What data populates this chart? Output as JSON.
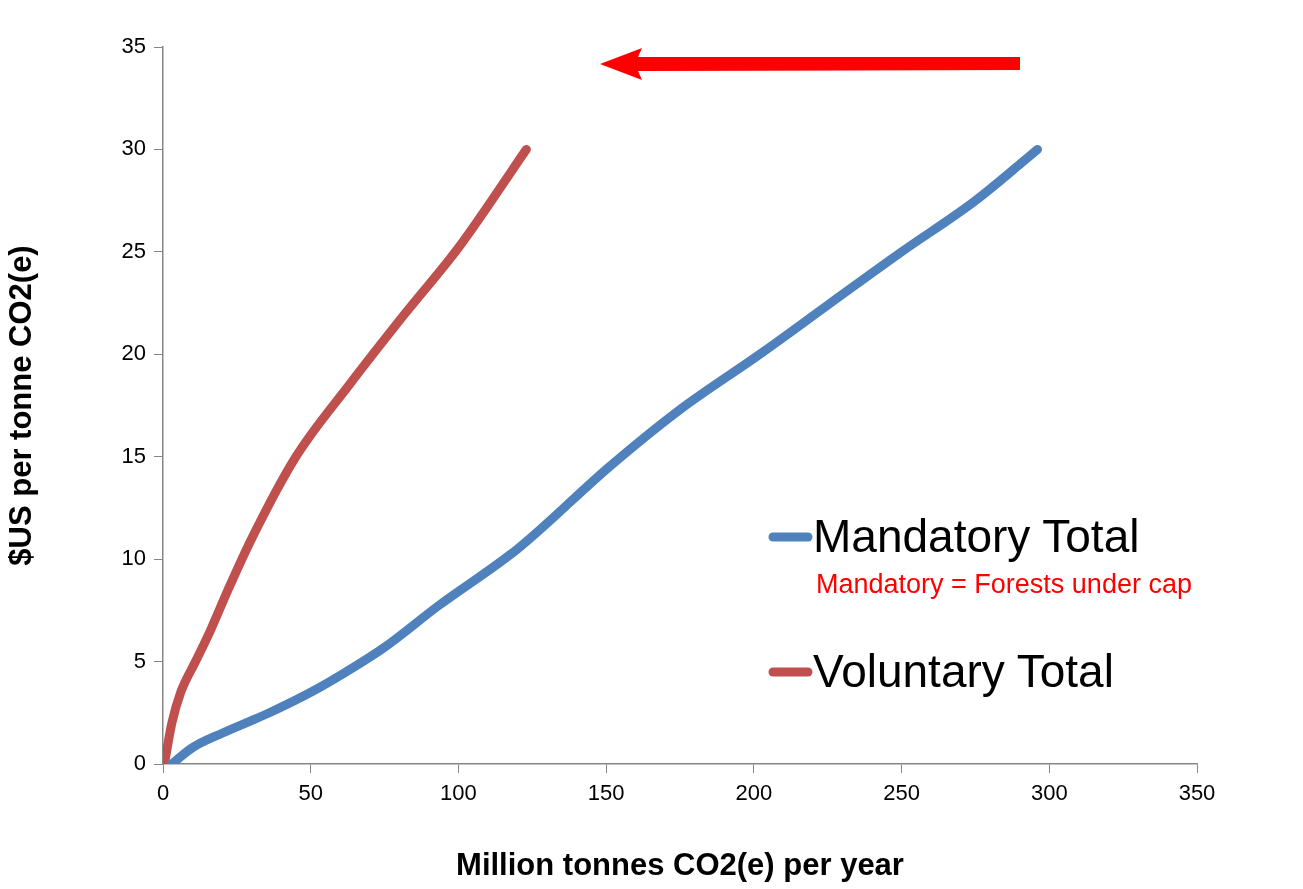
{
  "chart_data": {
    "type": "line",
    "xlabel": "Million tonnes CO2(e) per year",
    "ylabel": "$US per tonne CO2(e)",
    "xlim": [
      0,
      350
    ],
    "xticks": [
      0,
      50,
      100,
      150,
      200,
      250,
      300,
      350
    ],
    "ylim": [
      0,
      35
    ],
    "yticks": [
      0,
      5,
      10,
      15,
      20,
      25,
      30,
      35
    ],
    "grid": false,
    "legend": "right",
    "marker": "none",
    "line_style": "solid",
    "annotations": [
      "Mandatory = Forests under cap"
    ],
    "series": [
      {
        "name": "Mandatory Total",
        "color": "#4f81bd",
        "x": [
          3,
          10,
          20,
          36,
          50,
          62,
          75,
          93,
          120,
          151,
          175,
          202,
          225,
          250,
          275,
          296
        ],
        "values": [
          0,
          0.8,
          1.5,
          2.5,
          3.5,
          4.5,
          5.7,
          7.7,
          10.5,
          14.5,
          17.3,
          20,
          22.4,
          25,
          27.5,
          30
        ]
      },
      {
        "name": "Voluntary Total",
        "color": "#c0504d",
        "x": [
          0.7,
          3,
          6,
          11,
          16,
          22,
          30,
          45,
          63,
          82,
          100,
          123
        ],
        "values": [
          0.2,
          2,
          3.5,
          5,
          6.5,
          8.5,
          11,
          15,
          18.5,
          22,
          25.2,
          30
        ]
      }
    ]
  }
}
